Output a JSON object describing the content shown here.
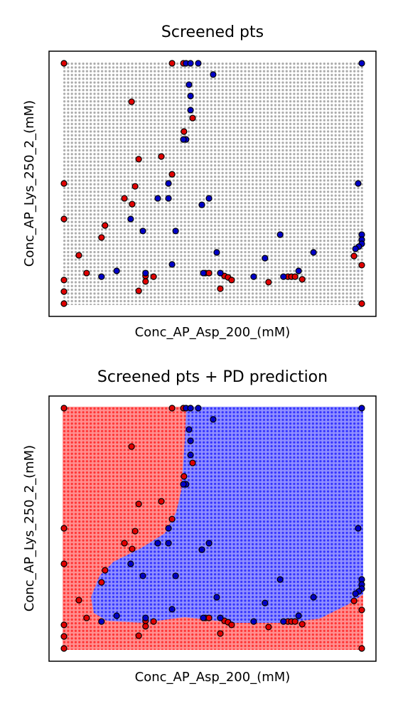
{
  "chart_data": [
    {
      "type": "scatter",
      "title": "Screened pts",
      "xlabel": "Conc_AP_Asp_200_(mM)",
      "ylabel": "Conc_AP_Lys_250_2_(mM)",
      "xlim": [
        0,
        1
      ],
      "ylim": [
        0,
        1
      ],
      "series": [
        {
          "color": "#e00000",
          "x": [
            0,
            0.363,
            0.401,
            0.227,
            0.251,
            0.327,
            0.363,
            0,
            0.239,
            0.203,
            0.229,
            0,
            0.138,
            0.126,
            0.05,
            0.076,
            0.274,
            0.301,
            0.274,
            0.251,
            0.475,
            0.487,
            0.539,
            0.551,
            0.563,
            0.525,
            0.687,
            0.752,
            0.764,
            0.776,
            0.8,
            0.974,
            1,
            0,
            0,
            0,
            1,
            0.432,
            0.403
          ],
          "y": [
            1,
            1,
            1,
            0.84,
            0.601,
            0.612,
            0.538,
            0.5,
            0.488,
            0.438,
            0.414,
            0.352,
            0.325,
            0.275,
            0.201,
            0.127,
            0.115,
            0.112,
            0.092,
            0.053,
            0.127,
            0.127,
            0.115,
            0.109,
            0.098,
            0.062,
            0.089,
            0.112,
            0.112,
            0.112,
            0.101,
            0.198,
            0.16,
            0.098,
            0.05,
            0,
            0,
            0.772,
            0.716
          ]
        },
        {
          "color": "#0000c8",
          "x": [
            0.41,
            0.425,
            0.451,
            1,
            0.501,
            0.42,
            0.425,
            0.425,
            0.41,
            0.401,
            0.988,
            0.351,
            0.315,
            0.351,
            0.487,
            0.463,
            0.224,
            0.265,
            0.375,
            0.726,
            1,
            1,
            1,
            0.99,
            0.979,
            0.838,
            0.675,
            0.513,
            0.177,
            0.126,
            0.274,
            0.363,
            0.468,
            0.525,
            0.637,
            0.737,
            0.788
          ],
          "y": [
            1,
            1,
            1,
            1,
            0.953,
            0.911,
            0.864,
            0.805,
            0.683,
            0.683,
            0.5,
            0.5,
            0.438,
            0.438,
            0.438,
            0.411,
            0.352,
            0.302,
            0.302,
            0.287,
            0.287,
            0.266,
            0.249,
            0.237,
            0.228,
            0.213,
            0.189,
            0.213,
            0.136,
            0.112,
            0.127,
            0.163,
            0.127,
            0.127,
            0.112,
            0.112,
            0.136
          ]
        }
      ]
    },
    {
      "type": "scatter",
      "title": "Screened pts + PD prediction",
      "xlabel": "Conc_AP_Asp_200_(mM)",
      "ylabel": "Conc_AP_Lys_250_2_(mM)",
      "xlim": [
        0,
        1
      ],
      "ylim": [
        0,
        1
      ],
      "series": [
        {
          "color": "#e00000",
          "x": [
            0,
            0.363,
            0.401,
            0.227,
            0.251,
            0.327,
            0.363,
            0,
            0.239,
            0.203,
            0.229,
            0,
            0.138,
            0.126,
            0.05,
            0.076,
            0.274,
            0.301,
            0.274,
            0.251,
            0.475,
            0.487,
            0.539,
            0.551,
            0.563,
            0.525,
            0.687,
            0.752,
            0.764,
            0.776,
            0.8,
            0.974,
            1,
            0,
            0,
            0,
            1,
            0.432,
            0.403
          ],
          "y": [
            1,
            1,
            1,
            0.84,
            0.601,
            0.612,
            0.538,
            0.5,
            0.488,
            0.438,
            0.414,
            0.352,
            0.325,
            0.275,
            0.201,
            0.127,
            0.115,
            0.112,
            0.092,
            0.053,
            0.127,
            0.127,
            0.115,
            0.109,
            0.098,
            0.062,
            0.089,
            0.112,
            0.112,
            0.112,
            0.101,
            0.198,
            0.16,
            0.098,
            0.05,
            0,
            0,
            0.772,
            0.716
          ]
        },
        {
          "color": "#0000c8",
          "x": [
            0.41,
            0.425,
            0.451,
            1,
            0.501,
            0.42,
            0.425,
            0.425,
            0.41,
            0.401,
            0.988,
            0.351,
            0.315,
            0.351,
            0.487,
            0.463,
            0.224,
            0.265,
            0.375,
            0.726,
            1,
            1,
            1,
            0.99,
            0.979,
            0.838,
            0.675,
            0.513,
            0.177,
            0.126,
            0.274,
            0.363,
            0.468,
            0.525,
            0.637,
            0.737,
            0.788
          ],
          "y": [
            1,
            1,
            1,
            1,
            0.953,
            0.911,
            0.864,
            0.805,
            0.683,
            0.683,
            0.5,
            0.5,
            0.438,
            0.438,
            0.438,
            0.411,
            0.352,
            0.302,
            0.302,
            0.287,
            0.287,
            0.266,
            0.249,
            0.237,
            0.228,
            0.213,
            0.189,
            0.213,
            0.136,
            0.112,
            0.127,
            0.163,
            0.127,
            0.127,
            0.112,
            0.112,
            0.136
          ]
        }
      ]
    }
  ]
}
